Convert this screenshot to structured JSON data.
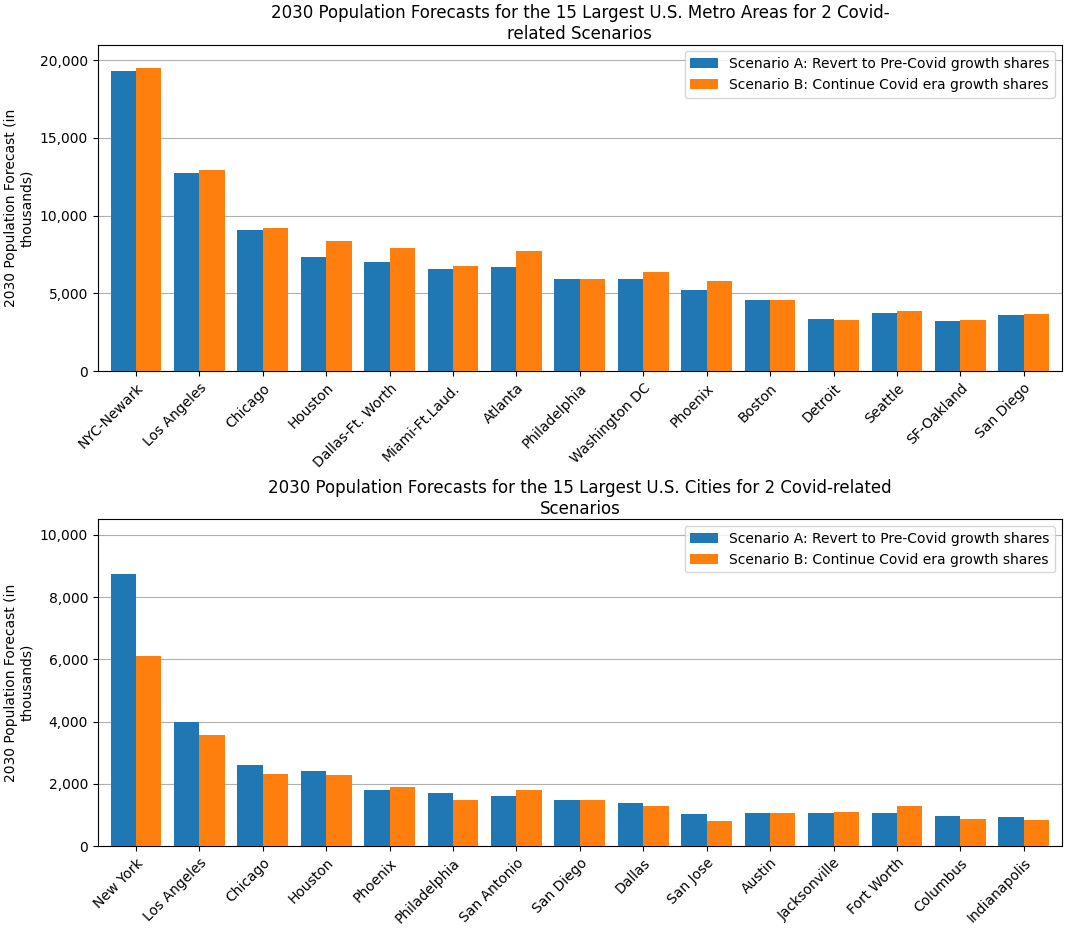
{
  "chart_data": [
    {
      "type": "bar",
      "title": "2030 Population Forecasts for the 15 Largest U.S. Metro Areas for 2 Covid-\nrelated Scenarios",
      "y_label": "2030 Population Forecast (in\nthousands)",
      "categories": [
        "NYC-Newark",
        "Los Angeles",
        "Chicago",
        "Houston",
        "Dallas-Ft. Worth",
        "Miami-Ft.Laud.",
        "Atlanta",
        "Philadelphia",
        "Washington DC",
        "Phoenix",
        "Boston",
        "Detroit",
        "Seattle",
        "SF-Oakland",
        "San Diego"
      ],
      "series": [
        {
          "name": "Scenario A: Revert to Pre-Covid growth shares",
          "values": [
            19300,
            12750,
            9050,
            7350,
            7050,
            6550,
            6700,
            5950,
            5950,
            5250,
            4550,
            3350,
            3750,
            3250,
            3600
          ]
        },
        {
          "name": "Scenario B: Continue Covid era growth shares",
          "values": [
            19500,
            12950,
            9200,
            8350,
            7950,
            6750,
            7700,
            5950,
            6350,
            5800,
            4550,
            3300,
            3850,
            3300,
            3700
          ]
        }
      ],
      "ylim": [
        0,
        21000
      ],
      "yticks": [
        0,
        {
          "value": 5000,
          "label": "5,000"
        },
        {
          "value": 10000,
          "label": "10,000"
        },
        {
          "value": 15000,
          "label": "15,000"
        },
        {
          "value": 20000,
          "label": "20,000"
        }
      ],
      "grid": true,
      "legend": "upper right"
    },
    {
      "type": "bar",
      "title": "2030 Population Forecasts for the 15 Largest U.S. Cities for 2 Covid-related\nScenarios",
      "y_label": "2030 Population Forecast (in\nthousands)",
      "categories": [
        "New York",
        "Los Angeles",
        "Chicago",
        "Houston",
        "Phoenix",
        "Philadelphia",
        "San Antonio",
        "San Diego",
        "Dallas",
        "San Jose",
        "Austin",
        "Jacksonville",
        "Fort Worth",
        "Columbus",
        "Indianapolis"
      ],
      "series": [
        {
          "name": "Scenario A: Revert to Pre-Covid growth shares",
          "values": [
            8750,
            3980,
            2620,
            2420,
            1820,
            1720,
            1600,
            1480,
            1380,
            1020,
            1080,
            1060,
            1070,
            970,
            950
          ]
        },
        {
          "name": "Scenario B: Continue Covid era growth shares",
          "values": [
            6100,
            3580,
            2310,
            2300,
            1910,
            1480,
            1800,
            1480,
            1290,
            820,
            1080,
            1100,
            1290,
            870,
            840
          ]
        }
      ],
      "ylim": [
        0,
        10500
      ],
      "yticks": [
        0,
        {
          "value": 2000,
          "label": "2,000"
        },
        {
          "value": 4000,
          "label": "4,000"
        },
        {
          "value": 6000,
          "label": "6,000"
        },
        {
          "value": 8000,
          "label": "8,000"
        },
        {
          "value": 10000,
          "label": "10,000"
        }
      ],
      "grid": true,
      "legend": "upper right"
    }
  ]
}
